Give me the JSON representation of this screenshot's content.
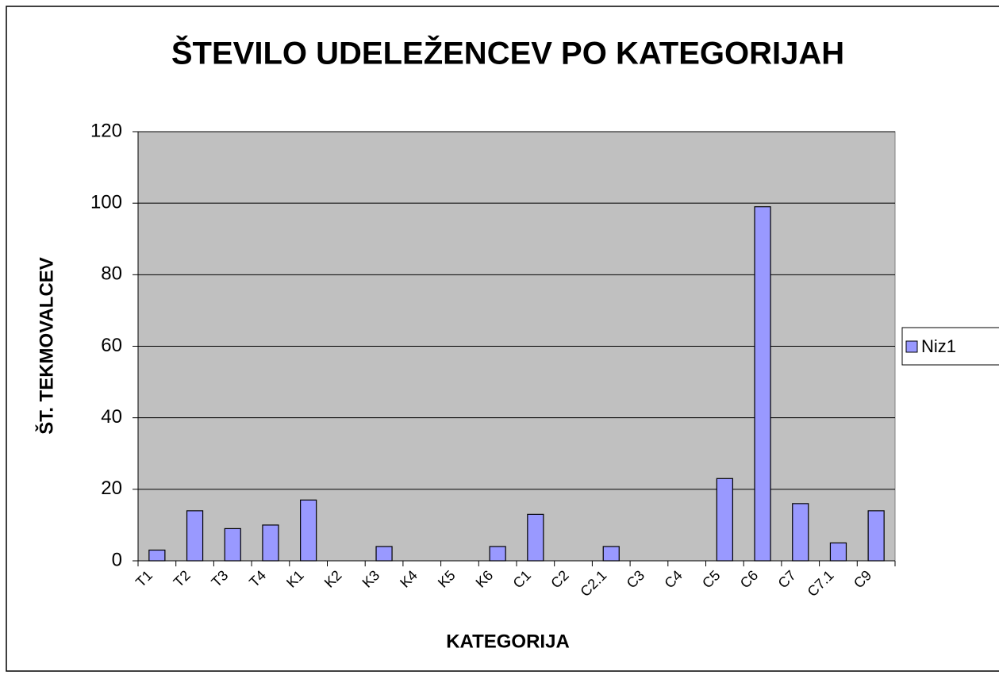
{
  "chart_data": {
    "type": "bar",
    "title": "ŠTEVILO UDELEŽENCEV PO KATEGORIJAH",
    "x_label": "KATEGORIJA",
    "y_label": "ŠT. TEKMOVALCEV",
    "categories": [
      "T1",
      "T2",
      "T3",
      "T4",
      "K1",
      "K2",
      "K3",
      "K4",
      "K5",
      "K6",
      "C1",
      "C2",
      "C2.1",
      "C3",
      "C4",
      "C5",
      "C6",
      "C7",
      "C7.1",
      "C9"
    ],
    "series": [
      {
        "name": "Niz1",
        "color": "#9999ff",
        "values": [
          3,
          14,
          9,
          10,
          17,
          0,
          4,
          0,
          0,
          4,
          13,
          0,
          4,
          0,
          0,
          23,
          99,
          16,
          5,
          14
        ]
      }
    ],
    "ylim": [
      0,
      120
    ],
    "yticks": [
      0,
      20,
      40,
      60,
      80,
      100,
      120
    ],
    "grid": true,
    "legend": "right"
  }
}
